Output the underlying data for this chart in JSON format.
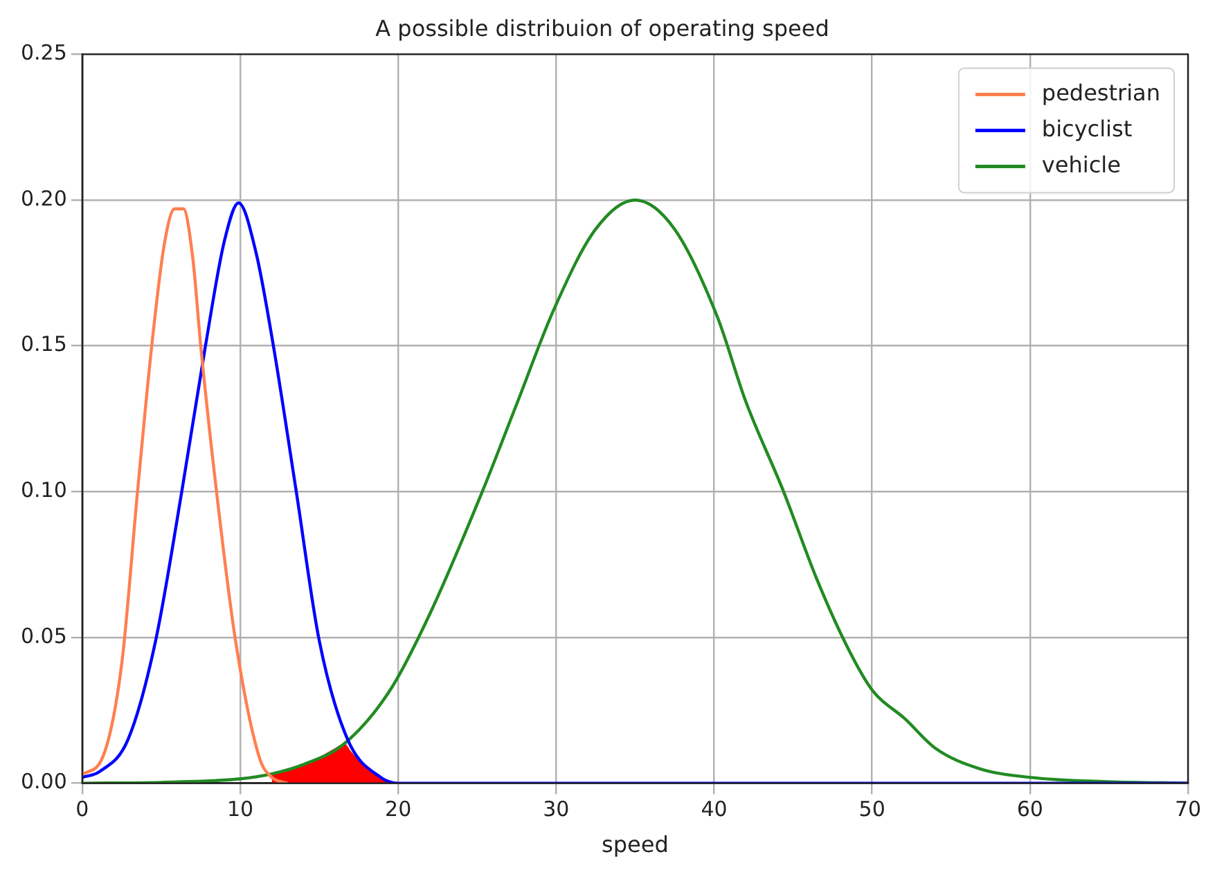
{
  "chart_data": {
    "type": "line",
    "title": "A possible distribuion of operating speed",
    "xlabel": "speed",
    "xlim": [
      0,
      70
    ],
    "xticks": [
      0,
      10,
      20,
      30,
      40,
      50,
      60,
      70
    ],
    "ylim": [
      0,
      0.25
    ],
    "yticks": [
      {
        "value": 0,
        "label": "0.00"
      },
      {
        "value": 0.05,
        "label": "0.05"
      },
      {
        "value": 0.1,
        "label": "0.10"
      },
      {
        "value": 0.15,
        "label": "0.15"
      },
      {
        "value": 0.2,
        "label": "0.20"
      },
      {
        "value": 0.25,
        "label": "0.25"
      }
    ],
    "grid": true,
    "legend": "top right",
    "marker": "none",
    "series": [
      {
        "name": "pedestrian",
        "color": "#ff7f50",
        "x": [
          0,
          1.3,
          2.5,
          3.5,
          4.4,
          5.2,
          5.85,
          6.4,
          7,
          7.5,
          8.5,
          9.7,
          11.2,
          12,
          13
        ],
        "values": [
          0.003,
          0.009,
          0.041,
          0.1,
          0.15,
          0.185,
          0.197,
          0.197,
          0.18,
          0.15,
          0.1,
          0.049,
          0.009,
          0.002,
          0
        ]
      },
      {
        "name": "bicyclist",
        "color": "#0000ff",
        "x": [
          0,
          1.1,
          2.9,
          4.65,
          6.3,
          7.8,
          9,
          9.9,
          11,
          12.1,
          13.55,
          15,
          16.8,
          18.9,
          20,
          70
        ],
        "values": [
          0.002,
          0.004,
          0.015,
          0.049,
          0.1,
          0.15,
          0.186,
          0.199,
          0.182,
          0.15,
          0.1,
          0.049,
          0.015,
          0.002,
          0,
          0
        ]
      },
      {
        "name": "vehicle",
        "color": "#228b22",
        "x": [
          0,
          5,
          10,
          12,
          14,
          16.6,
          19.5,
          22,
          25.4,
          27.5,
          29.9,
          32.5,
          35,
          37.5,
          40.2,
          42,
          44.4,
          46.5,
          48.5,
          50,
          52.1,
          54,
          56.8,
          60,
          65,
          70
        ],
        "values": [
          0,
          0.0003,
          0.0015,
          0.0032,
          0.0064,
          0.0136,
          0.032,
          0.058,
          0.101,
          0.13,
          0.163,
          0.19,
          0.2,
          0.19,
          0.16,
          0.131,
          0.1,
          0.07,
          0.046,
          0.032,
          0.022,
          0.012,
          0.005,
          0.002,
          0.0005,
          0
        ]
      },
      {
        "type": "area",
        "color": "#ff0000",
        "x": [
          12,
          13,
          14,
          15,
          16,
          16.6,
          17,
          18,
          19,
          20
        ],
        "values": [
          0.0032,
          0.0045,
          0.0064,
          0.0089,
          0.012,
          0.0136,
          0.011,
          0.005,
          0.002,
          0
        ]
      }
    ]
  }
}
